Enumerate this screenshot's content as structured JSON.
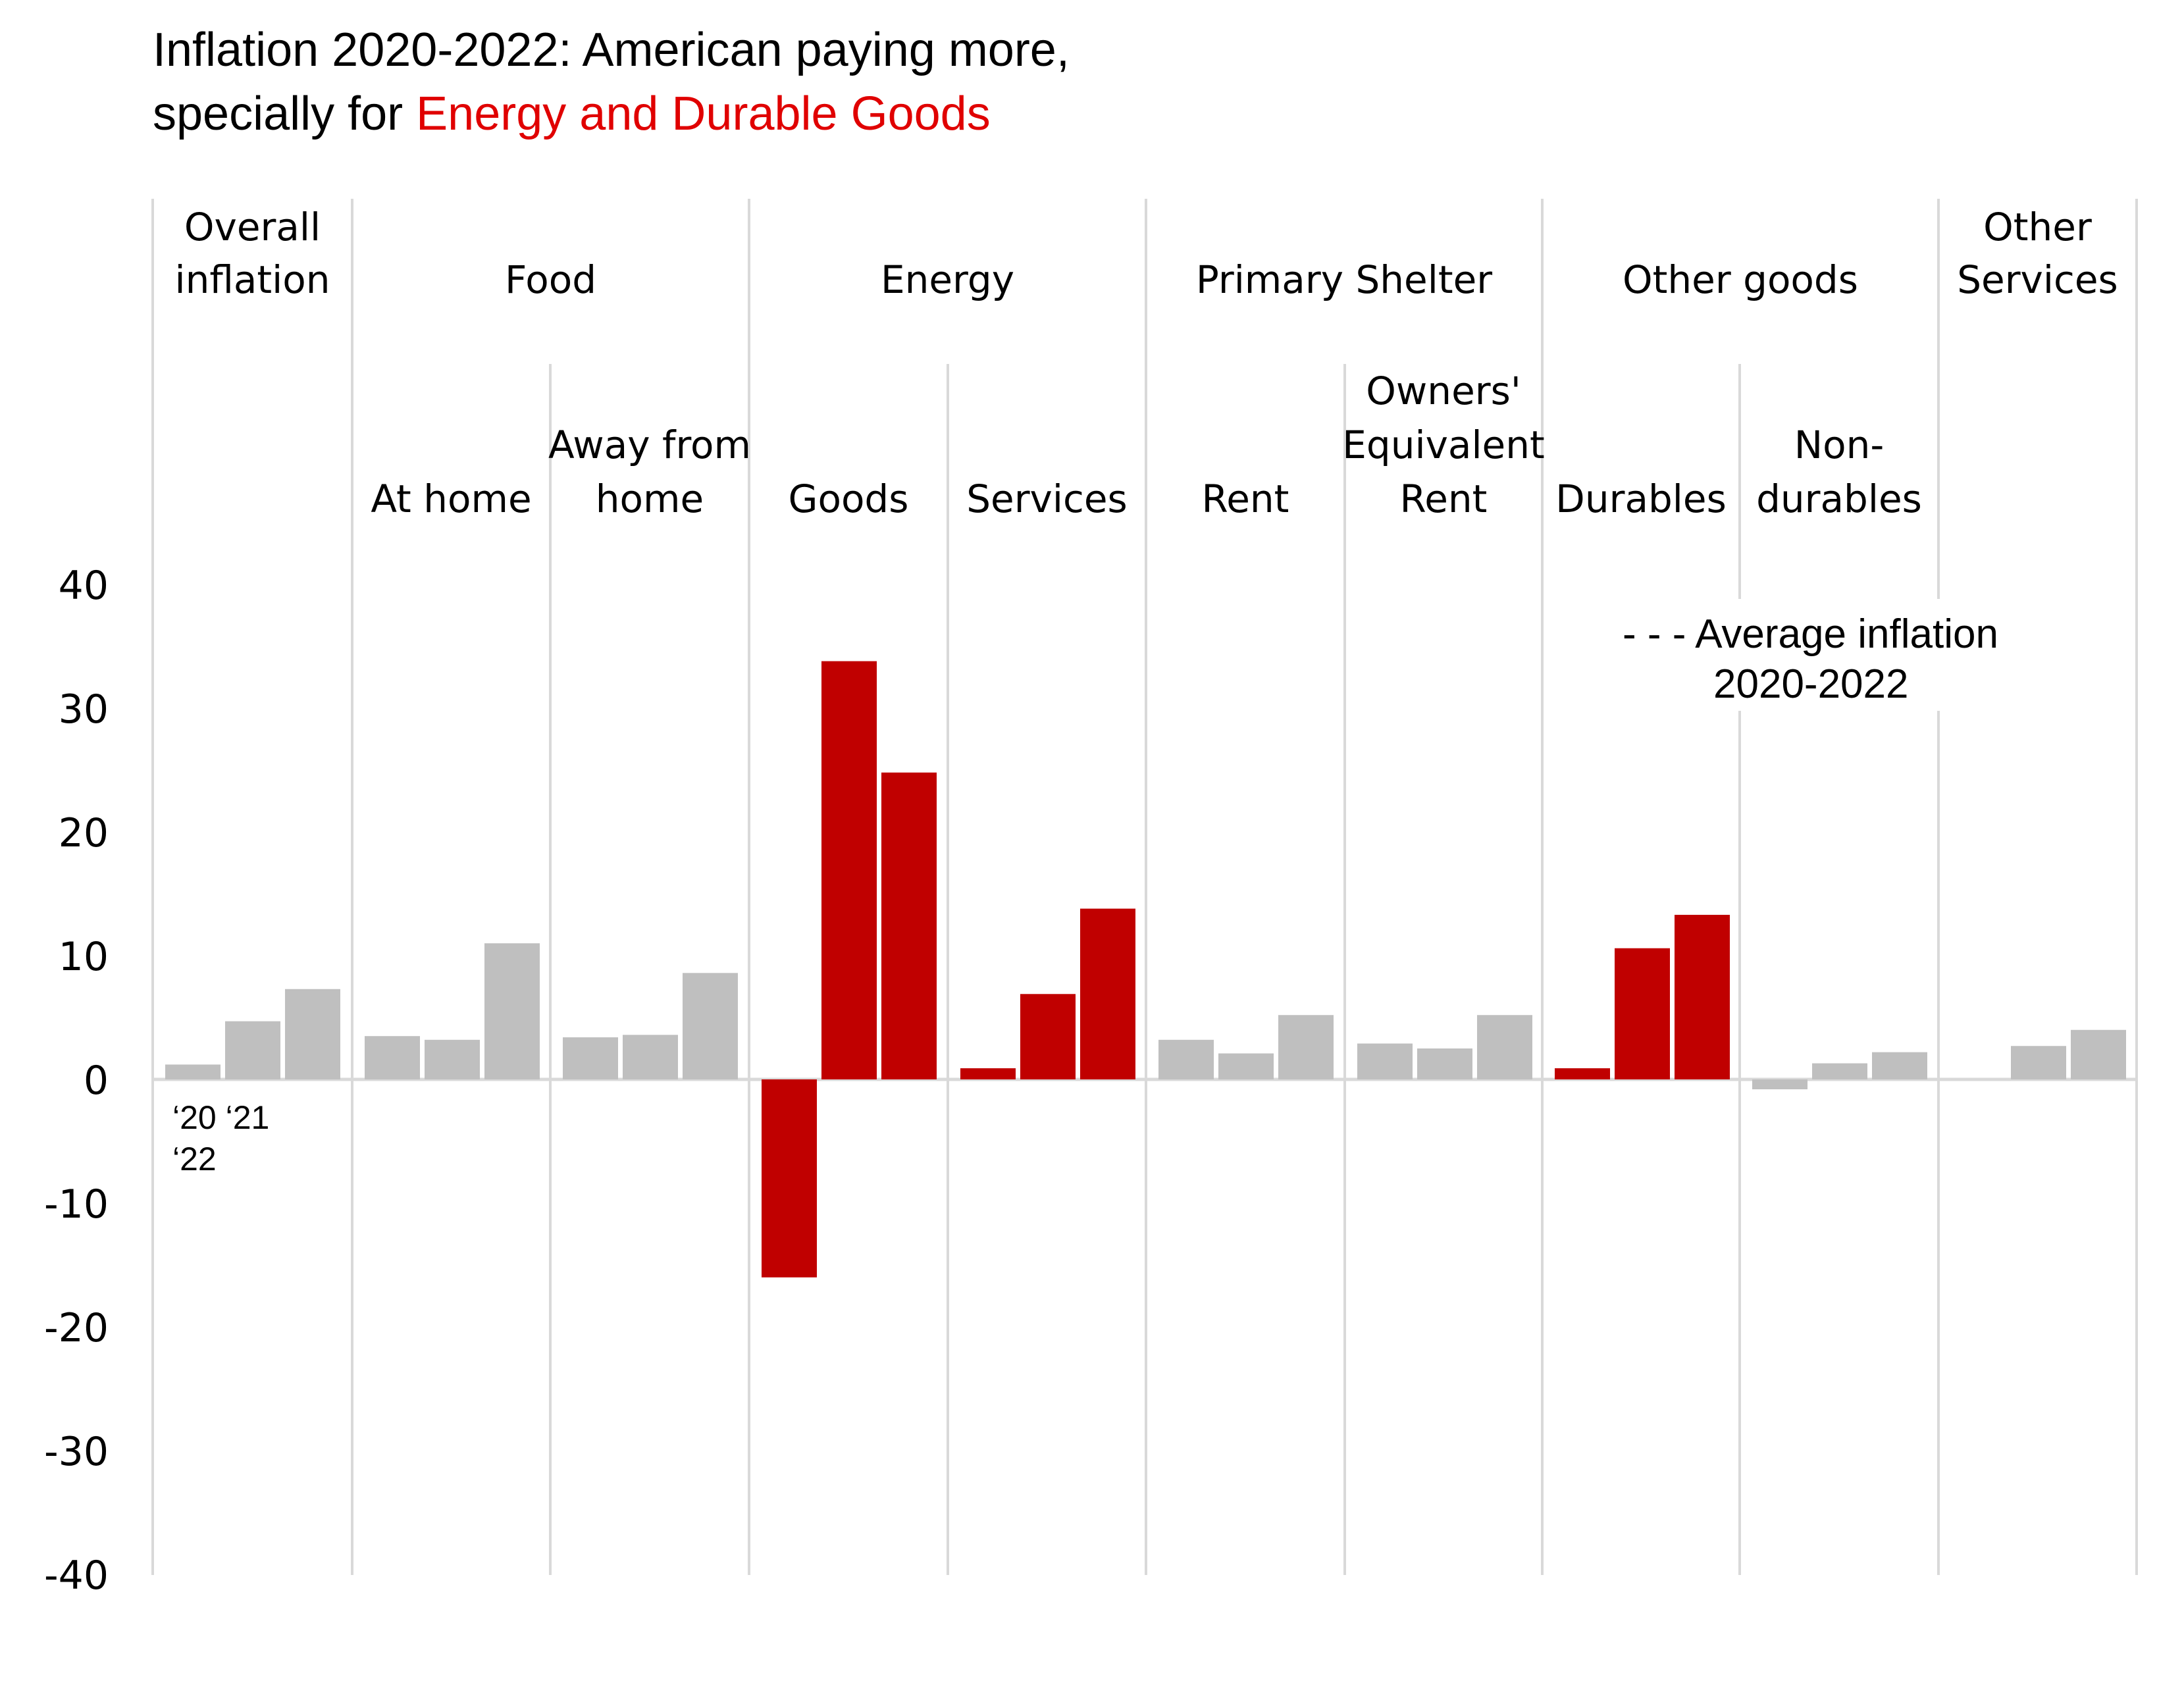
{
  "title": {
    "line1": "Inflation 2020-2022: American paying more,",
    "line2_prefix": "specially for ",
    "line2_highlight": "Energy and Durable Goods"
  },
  "colors": {
    "highlight": "#c00000",
    "neutral": "#bfbfbf",
    "title_highlight": "#e00000",
    "divider": "#d9d9d9"
  },
  "chart_data": {
    "type": "bar",
    "ylim": [
      -40,
      40
    ],
    "yticks": [
      "40",
      "30",
      "20",
      "10",
      "0",
      "-10",
      "-20",
      "-30",
      "-40"
    ],
    "year_labels": [
      "‘20 ‘21",
      "‘22"
    ],
    "legend": [
      "- - - Average inflation",
      "2020-2022"
    ],
    "groups": [
      {
        "label": [
          "Overall",
          "inflation"
        ],
        "categories": [
          {
            "label": [],
            "values": [
              1.2,
              4.7,
              7.3
            ],
            "highlight": false
          }
        ]
      },
      {
        "label": [
          "Food"
        ],
        "categories": [
          {
            "label": [
              "At home"
            ],
            "values": [
              3.5,
              3.2,
              11.0
            ],
            "highlight": false
          },
          {
            "label": [
              "Away from",
              "home"
            ],
            "values": [
              3.4,
              3.6,
              8.6
            ],
            "highlight": false
          }
        ]
      },
      {
        "label": [
          "Energy"
        ],
        "categories": [
          {
            "label": [
              "Goods"
            ],
            "values": [
              -16.0,
              33.8,
              24.8
            ],
            "highlight": true
          },
          {
            "label": [
              "Services"
            ],
            "values": [
              0.9,
              6.9,
              13.8
            ],
            "highlight": true
          }
        ]
      },
      {
        "label": [
          "Primary Shelter"
        ],
        "categories": [
          {
            "label": [
              "Rent"
            ],
            "values": [
              3.2,
              2.1,
              5.2
            ],
            "highlight": false
          },
          {
            "label": [
              "Owners'",
              "Equivalent",
              "Rent"
            ],
            "values": [
              2.9,
              2.5,
              5.2
            ],
            "highlight": false
          }
        ]
      },
      {
        "label": [
          "Other goods"
        ],
        "categories": [
          {
            "label": [
              "Durables"
            ],
            "values": [
              0.9,
              10.6,
              13.3
            ],
            "highlight": true
          },
          {
            "label": [
              "Non-",
              "durables"
            ],
            "values": [
              -0.8,
              1.3,
              2.2
            ],
            "highlight": false
          }
        ]
      },
      {
        "label": [
          "Other",
          "Services"
        ],
        "categories": [
          {
            "label": [],
            "values": [
              0.0,
              2.7,
              4.0
            ],
            "highlight": false
          }
        ]
      }
    ]
  }
}
